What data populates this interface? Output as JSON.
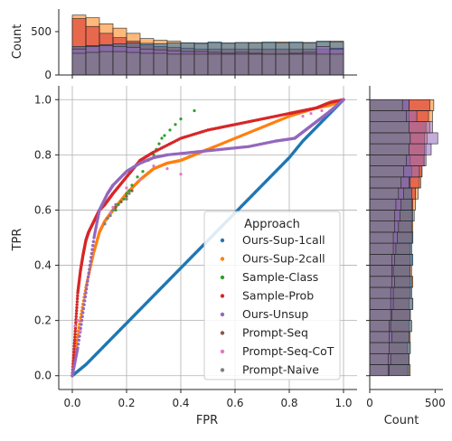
{
  "colors": {
    "Ours-Sup-1call": "#1f77b4",
    "Ours-Sup-2call": "#ff7f0e",
    "Sample-Class": "#2ca02c",
    "Sample-Prob": "#d62728",
    "Ours-Unsup": "#9467bd",
    "Prompt-Seq": "#8c564b",
    "Prompt-Seq-CoT": "#e377c2",
    "Prompt-Naive": "#7f7f7f"
  },
  "chart_data": {
    "type": "scatter",
    "xlabel": "FPR",
    "ylabel": "TPR",
    "xlim": [
      -0.05,
      1.05
    ],
    "ylim": [
      -0.05,
      1.05
    ],
    "xticks": [
      "0.0",
      "0.2",
      "0.4",
      "0.6",
      "0.8",
      "1.0"
    ],
    "yticks": [
      "0.0",
      "0.2",
      "0.4",
      "0.6",
      "0.8",
      "1.0"
    ],
    "grid": true,
    "legend": {
      "title": "Approach",
      "placement": "lower-right"
    },
    "series": [
      {
        "name": "Ours-Sup-1call",
        "x": [
          0,
          0.05,
          0.1,
          0.15,
          0.2,
          0.25,
          0.3,
          0.35,
          0.4,
          0.45,
          0.5,
          0.55,
          0.6,
          0.65,
          0.7,
          0.75,
          0.8,
          0.85,
          0.9,
          0.95,
          1.0
        ],
        "y": [
          0,
          0.04,
          0.09,
          0.14,
          0.19,
          0.24,
          0.29,
          0.34,
          0.39,
          0.44,
          0.49,
          0.54,
          0.59,
          0.64,
          0.69,
          0.74,
          0.79,
          0.85,
          0.9,
          0.95,
          1.0
        ]
      },
      {
        "name": "Ours-Sup-2call",
        "x": [
          0,
          0.02,
          0.05,
          0.08,
          0.1,
          0.12,
          0.15,
          0.2,
          0.25,
          0.3,
          0.35,
          0.4,
          0.45,
          0.5,
          0.6,
          0.7,
          0.8,
          0.9,
          0.95,
          1.0
        ],
        "y": [
          0,
          0.15,
          0.32,
          0.45,
          0.52,
          0.56,
          0.6,
          0.66,
          0.71,
          0.75,
          0.77,
          0.78,
          0.8,
          0.82,
          0.86,
          0.9,
          0.94,
          0.97,
          0.98,
          1.0
        ]
      },
      {
        "name": "Sample-Class",
        "x": [
          0.16,
          0.17,
          0.18,
          0.19,
          0.2,
          0.21,
          0.22,
          0.24,
          0.26,
          0.28,
          0.3,
          0.31,
          0.32,
          0.33,
          0.34,
          0.36,
          0.38,
          0.4,
          0.45
        ],
        "y": [
          0.6,
          0.62,
          0.63,
          0.64,
          0.66,
          0.67,
          0.69,
          0.72,
          0.74,
          0.78,
          0.8,
          0.82,
          0.84,
          0.86,
          0.87,
          0.89,
          0.91,
          0.93,
          0.96
        ]
      },
      {
        "name": "Sample-Prob",
        "x": [
          0,
          0.01,
          0.02,
          0.03,
          0.04,
          0.05,
          0.06,
          0.08,
          0.1,
          0.12,
          0.15,
          0.2,
          0.25,
          0.3,
          0.4,
          0.5,
          0.6,
          0.7,
          0.8,
          0.85,
          0.9,
          0.95,
          1.0
        ],
        "y": [
          0,
          0.15,
          0.3,
          0.38,
          0.44,
          0.49,
          0.52,
          0.56,
          0.6,
          0.62,
          0.66,
          0.72,
          0.78,
          0.81,
          0.86,
          0.89,
          0.91,
          0.93,
          0.95,
          0.96,
          0.97,
          0.99,
          1.0
        ]
      },
      {
        "name": "Ours-Unsup",
        "x": [
          0,
          0.02,
          0.05,
          0.08,
          0.1,
          0.13,
          0.15,
          0.2,
          0.25,
          0.3,
          0.35,
          0.45,
          0.55,
          0.65,
          0.75,
          0.82,
          0.86,
          0.9,
          0.94,
          1.0
        ],
        "y": [
          0,
          0.1,
          0.3,
          0.5,
          0.6,
          0.66,
          0.69,
          0.74,
          0.77,
          0.79,
          0.8,
          0.81,
          0.82,
          0.83,
          0.85,
          0.86,
          0.89,
          0.92,
          0.95,
          1.0
        ]
      },
      {
        "name": "Prompt-Seq",
        "x": [
          0.13,
          0.14,
          0.15,
          0.16,
          0.18,
          0.2,
          0.22
        ],
        "y": [
          0.57,
          0.58,
          0.6,
          0.61,
          0.63,
          0.65,
          0.67
        ]
      },
      {
        "name": "Prompt-Seq-CoT",
        "x": [
          0.01,
          0.02,
          0.03,
          0.14,
          0.15,
          0.2,
          0.25,
          0.3,
          0.35,
          0.4,
          0.85,
          0.88,
          0.92
        ],
        "y": [
          0.18,
          0.2,
          0.16,
          0.59,
          0.61,
          0.68,
          0.71,
          0.76,
          0.75,
          0.73,
          0.94,
          0.95,
          0.96
        ]
      },
      {
        "name": "Prompt-Naive",
        "x": [
          0.12,
          0.13,
          0.14,
          0.15,
          0.16,
          0.2,
          0.21
        ],
        "y": [
          0.55,
          0.57,
          0.58,
          0.6,
          0.62,
          0.64,
          0.66
        ]
      }
    ],
    "marginal_top": {
      "type": "histogram",
      "ylabel": "Count",
      "yticks": [
        "0",
        "500"
      ],
      "ylim": [
        0,
        760
      ],
      "bin_edges": [
        0,
        0.05,
        0.1,
        0.15,
        0.2,
        0.25,
        0.3,
        0.35,
        0.4,
        0.45,
        0.5,
        0.55,
        0.6,
        0.65,
        0.7,
        0.75,
        0.8,
        0.85,
        0.9,
        0.95,
        1.0
      ],
      "series": [
        {
          "name": "Ours-Sup-2call",
          "counts": [
            690,
            660,
            590,
            540,
            480,
            420,
            400,
            390,
            370,
            360,
            370,
            365,
            370,
            375,
            370,
            380,
            370,
            375,
            380,
            390
          ]
        },
        {
          "name": "Sample-Prob",
          "counts": [
            650,
            560,
            480,
            430,
            390,
            350,
            330,
            320,
            310,
            300,
            300,
            300,
            300,
            300,
            300,
            300,
            300,
            300,
            300,
            310
          ]
        },
        {
          "name": "Ours-Sup-1call",
          "counts": [
            330,
            340,
            350,
            360,
            370,
            365,
            360,
            370,
            370,
            370,
            380,
            370,
            375,
            370,
            380,
            370,
            380,
            370,
            390,
            380
          ]
        },
        {
          "name": "Ours-Unsup",
          "counts": [
            300,
            330,
            340,
            330,
            320,
            300,
            290,
            280,
            270,
            270,
            260,
            250,
            260,
            250,
            240,
            240,
            250,
            260,
            330,
            300
          ]
        },
        {
          "name": "Prompt-Naive",
          "counts": [
            250,
            260,
            270,
            270,
            260,
            250,
            250,
            240,
            240,
            240,
            240,
            240,
            240,
            240,
            240,
            240,
            240,
            240,
            240,
            240
          ]
        }
      ]
    },
    "marginal_right": {
      "type": "histogram",
      "xlabel": "Count",
      "xticks": [
        "0",
        "500"
      ],
      "xlim": [
        0,
        560
      ],
      "bin_edges": [
        0,
        0.04,
        0.08,
        0.12,
        0.16,
        0.2,
        0.24,
        0.28,
        0.32,
        0.36,
        0.4,
        0.44,
        0.48,
        0.52,
        0.56,
        0.6,
        0.64,
        0.68,
        0.72,
        0.76,
        0.8,
        0.84,
        0.88,
        0.92,
        0.96,
        1.0
      ],
      "series": [
        {
          "name": "Ours-Sup-2call",
          "counts": [
            310,
            300,
            310,
            310,
            320,
            310,
            330,
            320,
            330,
            320,
            320,
            320,
            330,
            330,
            340,
            350,
            370,
            390,
            400,
            420,
            430,
            440,
            460,
            480,
            490
          ]
        },
        {
          "name": "Sample-Prob",
          "counts": [
            290,
            300,
            290,
            300,
            300,
            310,
            300,
            310,
            310,
            310,
            310,
            310,
            320,
            320,
            320,
            330,
            350,
            380,
            400,
            410,
            420,
            420,
            430,
            450,
            460
          ]
        },
        {
          "name": "Ours-Sup-1call",
          "counts": [
            300,
            300,
            310,
            300,
            320,
            310,
            330,
            320,
            320,
            310,
            330,
            320,
            330,
            320,
            330,
            320,
            320,
            310,
            320,
            310,
            300,
            310,
            300,
            300,
            300
          ]
        },
        {
          "name": "Ours-Unsup",
          "counts": [
            150,
            160,
            150,
            170,
            160,
            170,
            180,
            180,
            190,
            180,
            190,
            200,
            210,
            220,
            230,
            240,
            260,
            300,
            380,
            430,
            470,
            520,
            480,
            360,
            300
          ]
        },
        {
          "name": "Prompt-Naive",
          "counts": [
            140,
            140,
            150,
            150,
            150,
            160,
            160,
            160,
            170,
            170,
            170,
            180,
            180,
            190,
            190,
            200,
            220,
            240,
            260,
            280,
            300,
            310,
            300,
            280,
            250
          ]
        }
      ]
    }
  }
}
